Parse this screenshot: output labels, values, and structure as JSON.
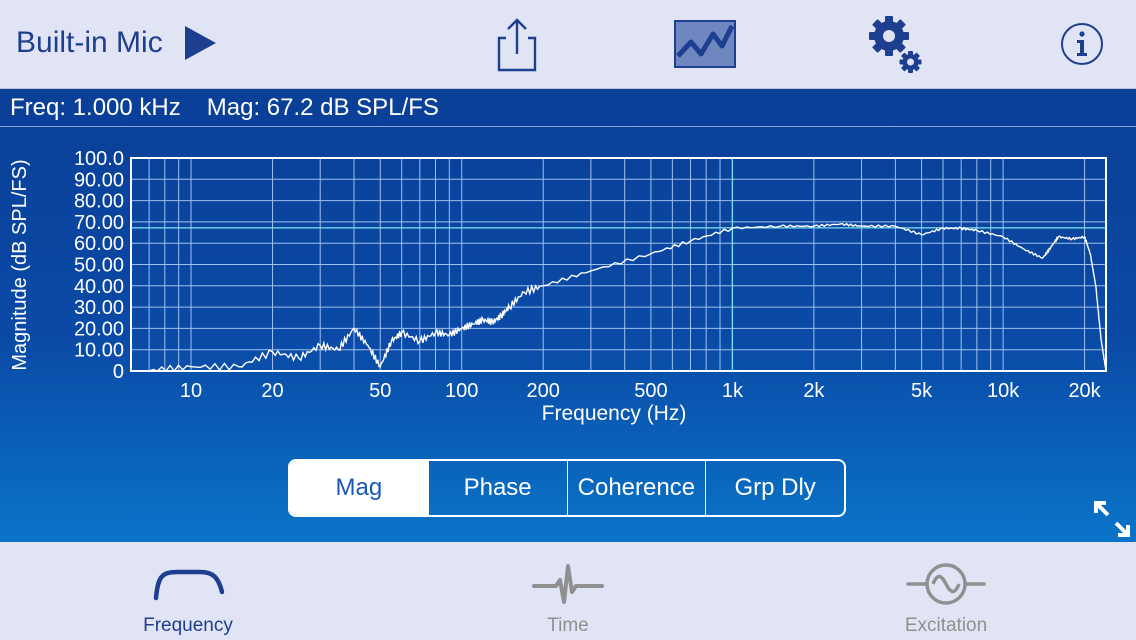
{
  "header": {
    "device": "Built-in Mic",
    "icons": [
      "play-icon",
      "share-icon",
      "graph-icon",
      "settings-icon",
      "info-icon"
    ]
  },
  "readout": {
    "freq": "Freq: 1.000 kHz",
    "mag": "Mag: 67.2 dB SPL/FS"
  },
  "chart_data": {
    "type": "line",
    "ylabel": "Magnitude (dB SPL/FS)",
    "xlabel": "Frequency (Hz)",
    "x_scale": "log",
    "xlim": [
      6,
      24000
    ],
    "ylim": [
      0,
      100
    ],
    "y_ticks": [
      "100.0",
      "90.00",
      "80.00",
      "70.00",
      "60.00",
      "50.00",
      "40.00",
      "30.00",
      "20.00",
      "10.00",
      "0"
    ],
    "x_ticks": [
      "10",
      "20",
      "50",
      "100",
      "200",
      "500",
      "1k",
      "2k",
      "5k",
      "10k",
      "20k"
    ],
    "cursor": {
      "x": 1000,
      "y": 67.2
    },
    "grid": true,
    "series": [
      {
        "x": [
          7,
          10,
          15,
          20,
          25,
          30,
          35,
          40,
          45,
          50,
          55,
          60,
          70,
          80,
          90,
          100,
          110,
          120,
          130,
          140,
          150,
          170,
          200,
          300,
          500,
          700,
          1000,
          1500,
          2000,
          2500,
          3000,
          4000,
          5000,
          6000,
          7000,
          8000,
          10000,
          12000,
          14000,
          15000,
          16000,
          18000,
          20000,
          21000,
          22000,
          23000,
          24000
        ],
        "y": [
          0,
          2,
          2,
          9,
          6,
          12,
          10,
          20,
          12,
          2,
          14,
          18,
          14,
          18,
          17,
          20,
          22,
          24,
          23,
          26,
          30,
          37,
          40,
          47,
          55,
          61,
          67,
          68,
          68,
          69,
          68,
          68,
          64,
          67,
          67,
          66,
          63,
          57,
          53,
          58,
          63,
          62,
          63,
          55,
          40,
          15,
          0
        ]
      }
    ]
  },
  "segments": [
    {
      "label": "Mag",
      "selected": true
    },
    {
      "label": "Phase",
      "selected": false
    },
    {
      "label": "Coherence",
      "selected": false
    },
    {
      "label": "Grp Dly",
      "selected": false
    }
  ],
  "tabs": {
    "frequency": "Frequency",
    "time": "Time",
    "excitation": "Excitation"
  },
  "colors": {
    "accent": "#1e3f8f",
    "plot_bg": "#0a4aa6",
    "grid": "#9fc0ee",
    "cursor": "#7fe0f0"
  }
}
